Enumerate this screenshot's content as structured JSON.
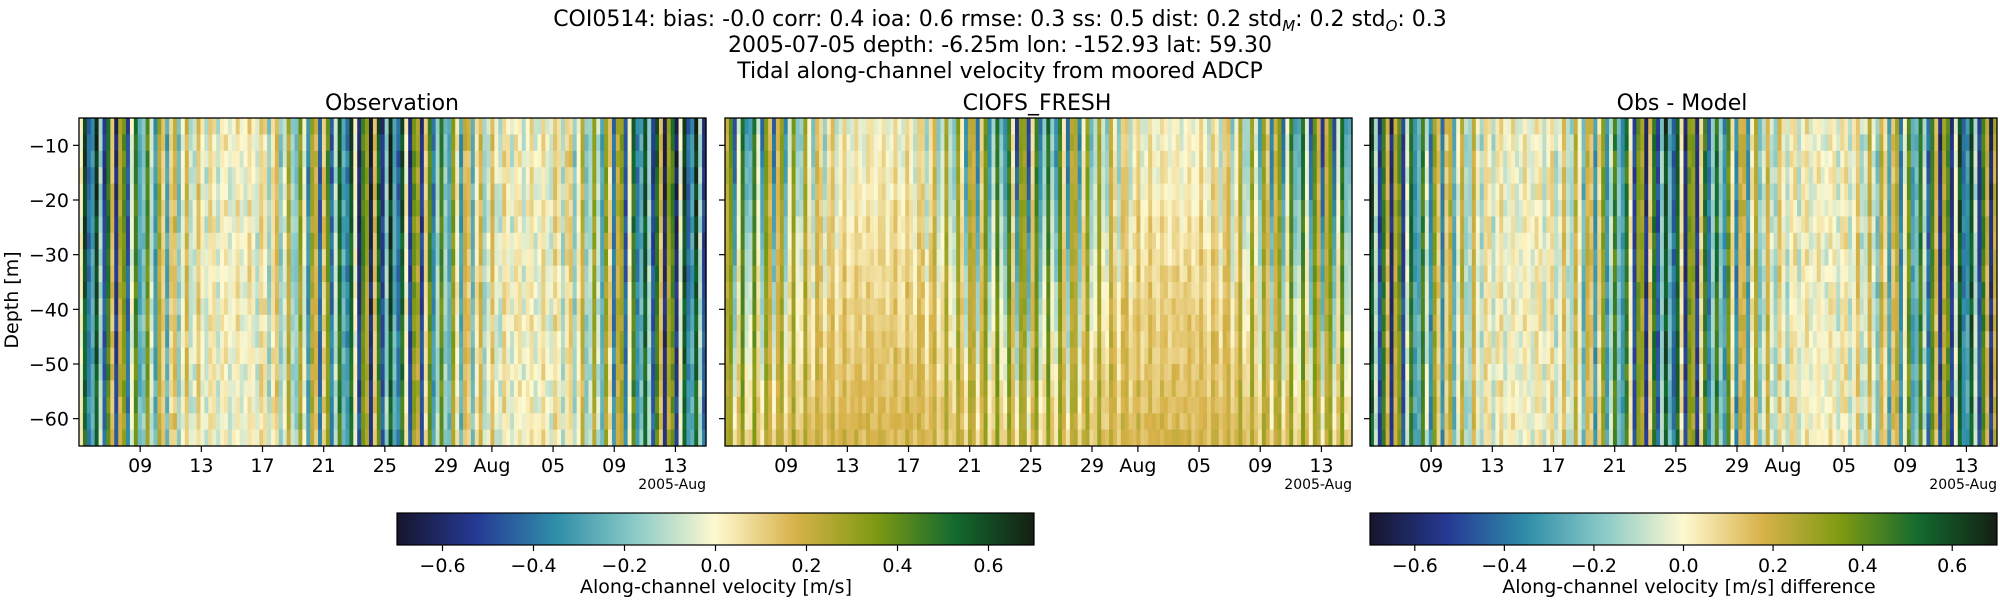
{
  "figure": {
    "title_prefix": "COI0514: bias: -0.0  corr: 0.4  ioa: 0.6  rmse: 0.3  ss: 0.5  dist: 0.2  std",
    "title_std_m_sub": "M",
    "title_std_m_val": ": 0.2  std",
    "title_std_o_sub": "O",
    "title_std_o_val": ": 0.3",
    "title_line2": "2005-07-05 depth: -6.25m lon: -152.93 lat: 59.30",
    "title_line3": "Tidal along-channel velocity from moored ADCP"
  },
  "chart_data": [
    {
      "type": "heatmap",
      "title": "Observation",
      "ylabel": "Depth [m]",
      "ylim": [
        -65,
        -5
      ],
      "yticks": [
        -10,
        -20,
        -30,
        -40,
        -50,
        -60
      ],
      "xticklabels": [
        "09",
        "13",
        "17",
        "21",
        "25",
        "29",
        "Aug",
        "05",
        "09",
        "13"
      ],
      "xoffset_label": "2005-Aug",
      "xrange": [
        "2005-07-05",
        "2005-08-15"
      ],
      "colormap": "balance-like diverging (navy–teal–cream–olive–dark green)",
      "clim": [
        -0.7,
        0.7
      ],
      "field": "tidal along-channel velocity, alternating ebb/flood bands, amplitude ~0.7 m/s"
    },
    {
      "type": "heatmap",
      "title": "CIOFS_FRESH",
      "ylim": [
        -65,
        -5
      ],
      "xticklabels": [
        "09",
        "13",
        "17",
        "21",
        "25",
        "29",
        "Aug",
        "05",
        "09",
        "13"
      ],
      "xoffset_label": "2005-Aug",
      "xrange": [
        "2005-07-05",
        "2005-08-15"
      ],
      "clim": [
        -0.7,
        0.7
      ],
      "field": "model velocity, strong near surface, weaker/positive-biased at depth"
    },
    {
      "type": "heatmap",
      "title": "Obs - Model",
      "ylim": [
        -65,
        -5
      ],
      "xticklabels": [
        "09",
        "13",
        "17",
        "21",
        "25",
        "29",
        "Aug",
        "05",
        "09",
        "13"
      ],
      "xoffset_label": "2005-Aug",
      "xrange": [
        "2005-07-05",
        "2005-08-15"
      ],
      "clim": [
        -0.7,
        0.7
      ],
      "field": "difference observation minus model"
    }
  ],
  "colorbars": [
    {
      "label": "Along-channel velocity [m/s]",
      "range": [
        -0.7,
        0.7
      ],
      "ticks": [
        "−0.6",
        "−0.4",
        "−0.2",
        "0.0",
        "0.2",
        "0.4",
        "0.6"
      ]
    },
    {
      "label": "Along-channel velocity [m/s] difference",
      "range": [
        -0.7,
        0.7
      ],
      "ticks": [
        "−0.6",
        "−0.4",
        "−0.2",
        "0.0",
        "0.2",
        "0.4",
        "0.6"
      ]
    }
  ],
  "colors": {
    "cmap_stops": [
      "#16152d",
      "#263a95",
      "#2f8ea8",
      "#8ccbc8",
      "#fff9d0",
      "#d8b24a",
      "#7f9a12",
      "#136a2f",
      "#141f13"
    ]
  }
}
